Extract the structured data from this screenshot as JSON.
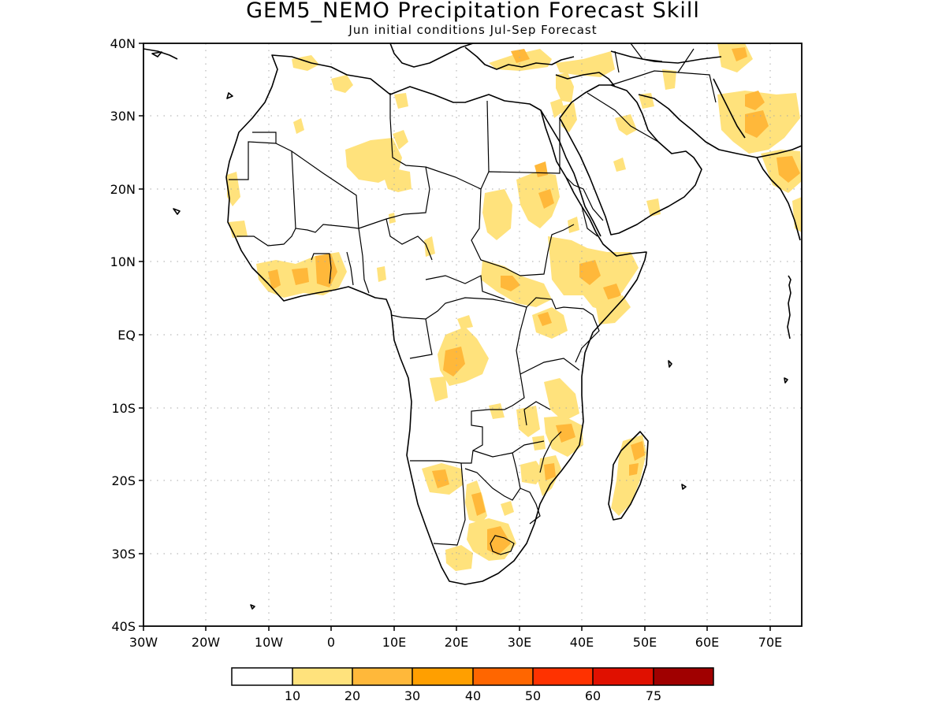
{
  "header": {
    "title": "GEM5_NEMO Precipitation Forecast Skill",
    "subtitle": "Jun initial conditions  Jul-Sep Forecast"
  },
  "map": {
    "region": "Africa",
    "variable": "Precipitation",
    "lon_range": [
      -30,
      75
    ],
    "lat_range": [
      -40,
      40
    ],
    "lat_ticks": [
      "40N",
      "30N",
      "20N",
      "10N",
      "EQ",
      "10S",
      "20S",
      "30S",
      "40S"
    ],
    "lon_ticks": [
      "30W",
      "20W",
      "10W",
      "0",
      "10E",
      "20E",
      "30E",
      "40E",
      "50E",
      "60E",
      "70E"
    ],
    "grid": true
  },
  "colorbar": {
    "labels": [
      "10",
      "20",
      "30",
      "40",
      "50",
      "60",
      "75"
    ],
    "colors": [
      "#ffffff",
      "#ffe27c",
      "#ffb83a",
      "#ff9f00",
      "#ff6600",
      "#ff3200",
      "#e01000",
      "#a00000"
    ]
  }
}
